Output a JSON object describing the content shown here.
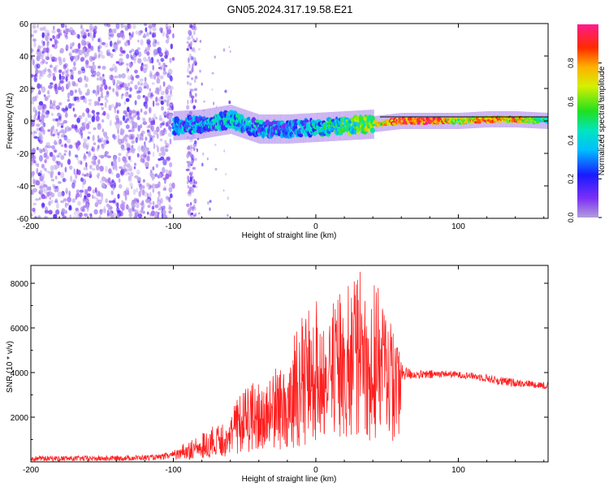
{
  "title": "GN05.2024.317.19.58.E21",
  "colors": {
    "snr_line": "#ff2020",
    "frame": "#000000"
  },
  "chart_data": [
    {
      "type": "heatmap",
      "xlabel": "Height of straight line (km)",
      "ylabel": "Frequency (Hz)",
      "xlim": [
        -200,
        163
      ],
      "ylim": [
        -60,
        60
      ],
      "xticks": [
        -200,
        -100,
        0,
        100
      ],
      "yticks": [
        -60,
        -40,
        -20,
        0,
        20,
        40,
        60
      ],
      "colorbar": {
        "label": "Normalized spectral amplitude",
        "range": [
          0,
          1
        ],
        "ticks": [
          "0.0",
          "0.2",
          "0.4",
          "0.6",
          "0.8"
        ],
        "colormap": "rainbow (violet → blue → cyan → green → yellow → orange → red → magenta)"
      },
      "structure": {
        "noise_region_x": [
          -200,
          -100
        ],
        "noise_band_x": [
          -90,
          -84
        ],
        "signal_track": {
          "x": [
            -100,
            -80,
            -60,
            -40,
            -20,
            0,
            20,
            40,
            60,
            80,
            100,
            120,
            140,
            163
          ],
          "freq": [
            -3,
            -2,
            1,
            -5,
            -5,
            -4,
            -3,
            -2,
            0,
            0,
            0,
            1,
            1,
            0
          ],
          "amplitude": [
            0.25,
            0.3,
            0.35,
            0.3,
            0.25,
            0.35,
            0.45,
            0.6,
            0.85,
            0.9,
            0.6,
            0.8,
            0.75,
            0.45
          ]
        }
      }
    },
    {
      "type": "line",
      "xlabel": "Height of straight line (km)",
      "ylabel": "SNR (10 * v/v)",
      "xlim": [
        -200,
        163
      ],
      "ylim": [
        0,
        8800
      ],
      "xticks": [
        -200,
        -100,
        0,
        100
      ],
      "yticks": [
        2000,
        4000,
        6000,
        8000
      ],
      "series": [
        {
          "x": [
            -200,
            -150,
            -110,
            -100,
            -90,
            -80,
            -70,
            -60,
            -50,
            -40,
            -30,
            -20,
            -10,
            0,
            10,
            20,
            30,
            40,
            50,
            60,
            70,
            80,
            90,
            100,
            110,
            120,
            130,
            140,
            150,
            163
          ],
          "y": [
            150,
            150,
            200,
            300,
            500,
            700,
            1000,
            1300,
            2000,
            2200,
            2400,
            2800,
            3200,
            3600,
            4200,
            4500,
            5000,
            4700,
            4400,
            4000,
            3900,
            3900,
            3950,
            3900,
            3850,
            3750,
            3600,
            3550,
            3500,
            3400
          ],
          "envelope_max": [
            350,
            350,
            400,
            600,
            900,
            1300,
            1700,
            2400,
            3400,
            3700,
            4200,
            5000,
            6700,
            7200,
            7500,
            8000,
            8600,
            8300,
            7000,
            4600,
            4200,
            4250,
            4200,
            4150,
            4100,
            4050,
            3950,
            3850,
            3750,
            3700
          ]
        }
      ]
    }
  ]
}
